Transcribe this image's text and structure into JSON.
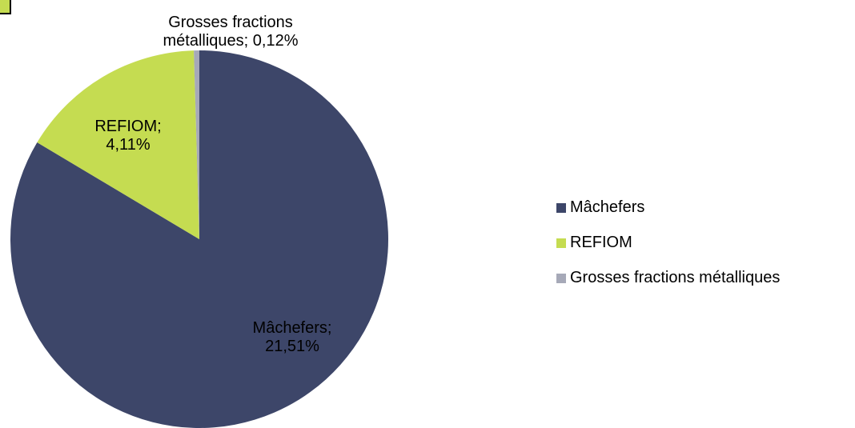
{
  "chart_data": {
    "type": "pie",
    "categories": [
      "Mâchefers",
      "REFIOM",
      "Grosses fractions métalliques"
    ],
    "values": [
      21.51,
      4.11,
      0.12
    ],
    "value_labels": [
      "Mâchefers; 21,51%",
      "REFIOM; 4,11%",
      "Grosses fractions métalliques; 0,12%"
    ],
    "colors": [
      "#3d4669",
      "#c5dc51",
      "#a6a9b8"
    ],
    "legend": "right"
  }
}
